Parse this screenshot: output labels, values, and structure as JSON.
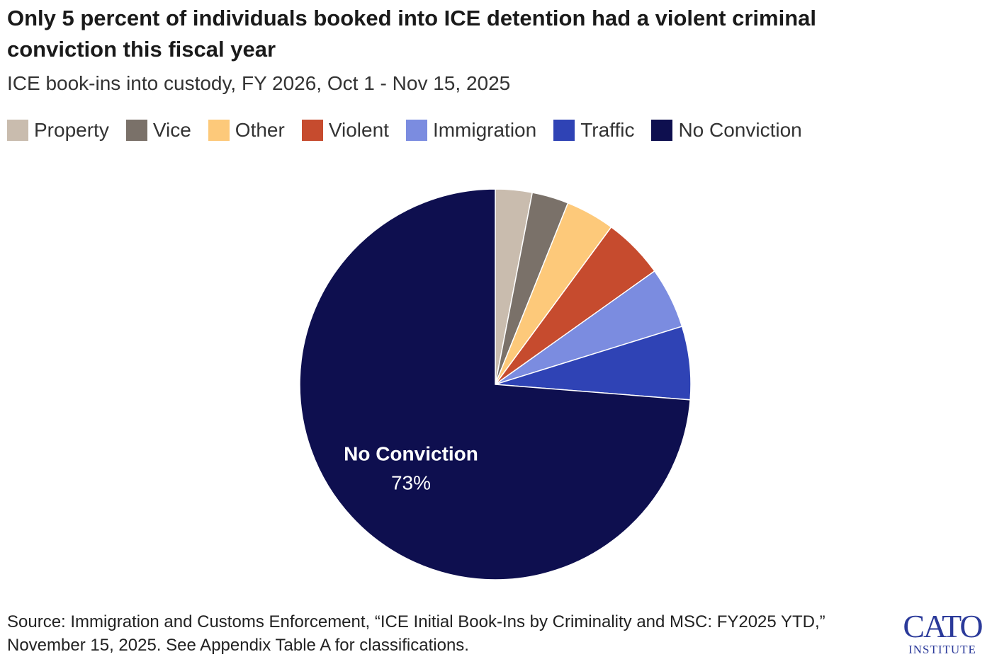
{
  "chart_data": {
    "type": "pie",
    "title": "Only 5 percent of individuals booked into ICE detention had a violent criminal conviction this fiscal year",
    "subtitle": "ICE book-ins into custody, FY 2026, Oct 1 - Nov 15, 2025",
    "categories": [
      "Property",
      "Vice",
      "Other",
      "Violent",
      "Immigration",
      "Traffic",
      "No Conviction"
    ],
    "values": [
      3,
      3,
      4,
      5,
      5,
      6,
      73
    ],
    "value_labels": [
      null,
      null,
      null,
      null,
      null,
      null,
      "73%"
    ],
    "colors": [
      "#c9bcae",
      "#7a7169",
      "#fdc97a",
      "#c64b2e",
      "#7b8ce0",
      "#2f43b5",
      "#0e0f4f"
    ],
    "source": "Source: Immigration and Customs Enforcement, “ICE Initial Book-Ins by Criminality and MSC: FY2025 YTD,” November 15, 2025. See Appendix Table A for classifications."
  },
  "logo": {
    "name": "CATO",
    "subtitle": "INSTITUTE"
  }
}
